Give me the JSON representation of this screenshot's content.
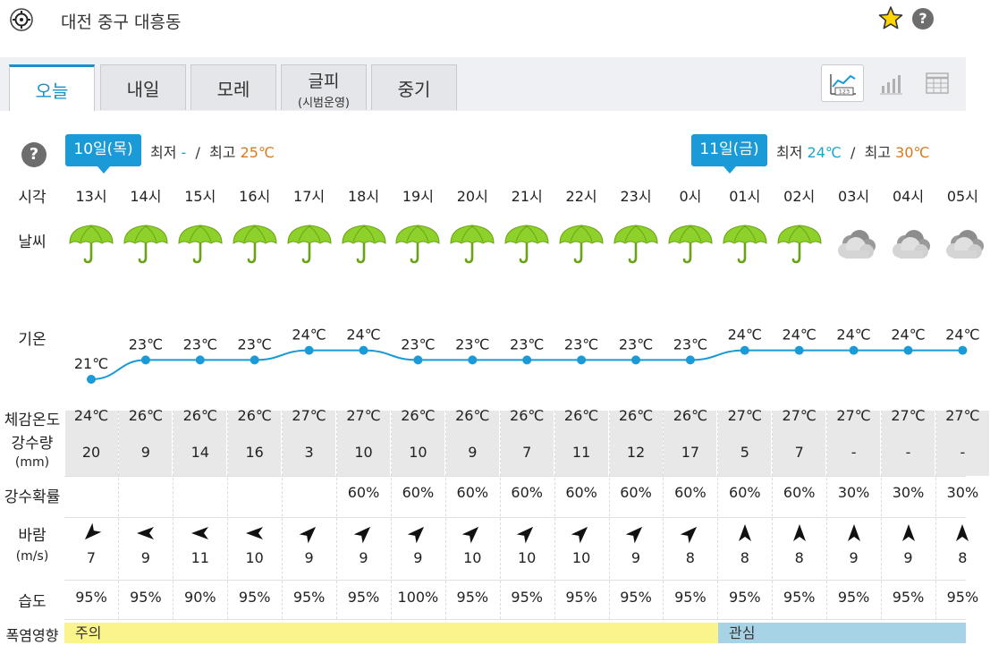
{
  "location": "대전 중구 대흥동",
  "tabs": [
    {
      "label": "오늘",
      "sub": ""
    },
    {
      "label": "내일",
      "sub": ""
    },
    {
      "label": "모레",
      "sub": ""
    },
    {
      "label": "글피",
      "sub": "(시범운영)"
    },
    {
      "label": "중기",
      "sub": ""
    }
  ],
  "days": [
    {
      "badge": "10일(목)",
      "min_label": "최저",
      "min": "-",
      "sep": "/",
      "max_label": "최고",
      "max": "25℃"
    },
    {
      "badge": "11일(금)",
      "min_label": "최저",
      "min": "24℃",
      "sep": "/",
      "max_label": "최고",
      "max": "30℃"
    }
  ],
  "row_labels": {
    "time": "시각",
    "weather": "날씨",
    "temp": "기온",
    "feels": "체감온도",
    "precip": "강수량",
    "precip_unit": "(mm)",
    "prob": "강수확률",
    "wind": "바람",
    "wind_unit": "(m/s)",
    "humidity": "습도",
    "heat": "폭염영향"
  },
  "hours": [
    {
      "time": "13시",
      "weather": "rain",
      "temp": 21,
      "temp_label": "21℃",
      "feels": "24℃",
      "precip": "20",
      "prob": "",
      "wind_dir": 225,
      "wind": "7",
      "hum": "95%"
    },
    {
      "time": "14시",
      "weather": "rain",
      "temp": 23,
      "temp_label": "23℃",
      "feels": "26℃",
      "precip": "9",
      "prob": "",
      "wind_dir": 270,
      "wind": "9",
      "hum": "95%"
    },
    {
      "time": "15시",
      "weather": "rain",
      "temp": 23,
      "temp_label": "23℃",
      "feels": "26℃",
      "precip": "14",
      "prob": "",
      "wind_dir": 270,
      "wind": "11",
      "hum": "90%"
    },
    {
      "time": "16시",
      "weather": "rain",
      "temp": 23,
      "temp_label": "23℃",
      "feels": "26℃",
      "precip": "16",
      "prob": "",
      "wind_dir": 270,
      "wind": "10",
      "hum": "95%"
    },
    {
      "time": "17시",
      "weather": "rain",
      "temp": 24,
      "temp_label": "24℃",
      "feels": "27℃",
      "precip": "3",
      "prob": "",
      "wind_dir": 45,
      "wind": "9",
      "hum": "95%"
    },
    {
      "time": "18시",
      "weather": "rain",
      "temp": 24,
      "temp_label": "24℃",
      "feels": "27℃",
      "precip": "10",
      "prob": "60%",
      "wind_dir": 45,
      "wind": "9",
      "hum": "95%"
    },
    {
      "time": "19시",
      "weather": "rain",
      "temp": 23,
      "temp_label": "23℃",
      "feels": "26℃",
      "precip": "10",
      "prob": "60%",
      "wind_dir": 45,
      "wind": "9",
      "hum": "100%"
    },
    {
      "time": "20시",
      "weather": "rain",
      "temp": 23,
      "temp_label": "23℃",
      "feels": "26℃",
      "precip": "9",
      "prob": "60%",
      "wind_dir": 45,
      "wind": "10",
      "hum": "95%"
    },
    {
      "time": "21시",
      "weather": "rain",
      "temp": 23,
      "temp_label": "23℃",
      "feels": "26℃",
      "precip": "7",
      "prob": "60%",
      "wind_dir": 45,
      "wind": "10",
      "hum": "95%"
    },
    {
      "time": "22시",
      "weather": "rain",
      "temp": 23,
      "temp_label": "23℃",
      "feels": "26℃",
      "precip": "11",
      "prob": "60%",
      "wind_dir": 45,
      "wind": "10",
      "hum": "95%"
    },
    {
      "time": "23시",
      "weather": "rain",
      "temp": 23,
      "temp_label": "23℃",
      "feels": "26℃",
      "precip": "12",
      "prob": "60%",
      "wind_dir": 45,
      "wind": "9",
      "hum": "95%"
    },
    {
      "time": "0시",
      "weather": "rain",
      "temp": 23,
      "temp_label": "23℃",
      "feels": "26℃",
      "precip": "17",
      "prob": "60%",
      "wind_dir": 45,
      "wind": "8",
      "hum": "95%"
    },
    {
      "time": "01시",
      "weather": "rain",
      "temp": 24,
      "temp_label": "24℃",
      "feels": "27℃",
      "precip": "5",
      "prob": "60%",
      "wind_dir": 0,
      "wind": "8",
      "hum": "95%"
    },
    {
      "time": "02시",
      "weather": "rain",
      "temp": 24,
      "temp_label": "24℃",
      "feels": "27℃",
      "precip": "7",
      "prob": "60%",
      "wind_dir": 0,
      "wind": "8",
      "hum": "95%"
    },
    {
      "time": "03시",
      "weather": "cloudy",
      "temp": 24,
      "temp_label": "24℃",
      "feels": "27℃",
      "precip": "-",
      "prob": "30%",
      "wind_dir": 0,
      "wind": "9",
      "hum": "95%"
    },
    {
      "time": "04시",
      "weather": "cloudy",
      "temp": 24,
      "temp_label": "24℃",
      "feels": "27℃",
      "precip": "-",
      "prob": "30%",
      "wind_dir": 0,
      "wind": "9",
      "hum": "95%"
    },
    {
      "time": "05시",
      "weather": "cloudy",
      "temp": 24,
      "temp_label": "24℃",
      "feels": "27℃",
      "precip": "-",
      "prob": "30%",
      "wind_dir": 0,
      "wind": "8",
      "hum": "95%"
    }
  ],
  "heat": [
    {
      "label": "주의",
      "level": "warn"
    },
    {
      "label": "관심",
      "level": "watch"
    }
  ],
  "colors": {
    "accent": "#1a9ad6",
    "line": "#1a9ad6",
    "max_temp": "#d87a1a",
    "min_temp": "#1aa5c7",
    "umbrella": "#8ed12a",
    "heat_warn": "#fbf38c",
    "heat_watch": "#a6d4e6"
  }
}
